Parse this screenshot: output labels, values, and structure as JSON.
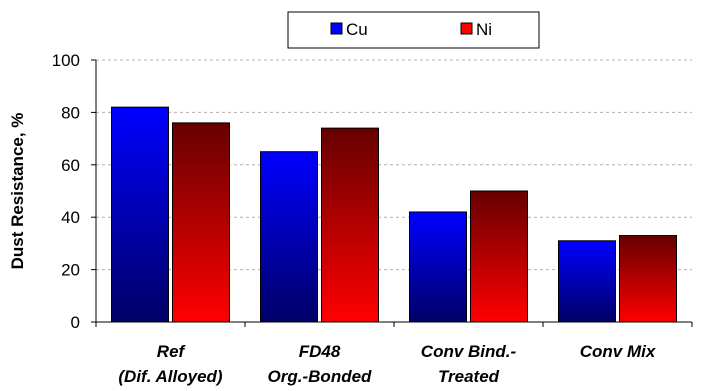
{
  "chart_data": {
    "type": "bar",
    "title": "",
    "xlabel": "",
    "ylabel": "Dust Resistance, %",
    "ylim": [
      0,
      100
    ],
    "yticks": [
      0,
      20,
      40,
      60,
      80,
      100
    ],
    "grid": "horizontal dashed",
    "legend": "top-center",
    "categories": [
      [
        "Ref",
        "(Dif. Alloyed)"
      ],
      [
        "FD48",
        "Org.-Bonded"
      ],
      [
        "Conv Bind.-",
        "Treated"
      ],
      [
        "Conv Mix"
      ]
    ],
    "series": [
      {
        "name": "Cu",
        "values": [
          82,
          65,
          42,
          31
        ],
        "color": "#0000ff"
      },
      {
        "name": "Ni",
        "values": [
          76,
          74,
          50,
          33
        ],
        "color": "#ff0000"
      }
    ]
  }
}
